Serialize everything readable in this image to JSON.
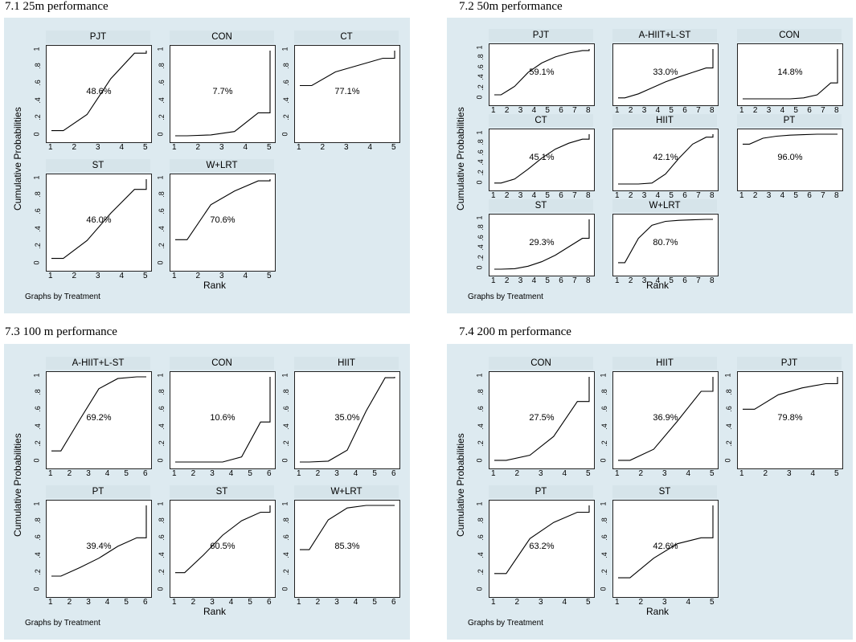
{
  "common": {
    "y_ticks": [
      "0",
      ".2",
      ".4",
      ".6",
      ".8",
      "1"
    ],
    "y_ticks_dense": [
      "0",
      ".2",
      ".4",
      ".6",
      ".8",
      "1"
    ]
  },
  "chart_data": [
    {
      "id": "p1",
      "title": "7.1 25m performance",
      "type": "line",
      "ylabel": "Cumulative Probabilities",
      "xlabel": "Rank",
      "note": "Graphs by Treatment",
      "dense": false,
      "panels": [
        {
          "name": "PJT",
          "label": "48.6%",
          "max": 5,
          "step": [
            0.06,
            0.25,
            0.67,
            0.97,
            1.0
          ]
        },
        {
          "name": "CON",
          "label": "7.7%",
          "max": 5,
          "step": [
            0.0,
            0.01,
            0.05,
            0.27,
            1.0
          ]
        },
        {
          "name": "CT",
          "label": "77.1%",
          "max": 5,
          "step": [
            0.59,
            0.75,
            0.83,
            0.91,
            1.0
          ]
        },
        {
          "name": "ST",
          "label": "46.0%",
          "max": 5,
          "step": [
            0.07,
            0.28,
            0.6,
            0.88,
            1.0
          ]
        },
        {
          "name": "W+LRT",
          "label": "70.6%",
          "max": 5,
          "step": [
            0.29,
            0.7,
            0.86,
            0.98,
            1.0
          ]
        }
      ]
    },
    {
      "id": "p2",
      "title": "7.2 50m performance",
      "type": "line",
      "ylabel": "Cumulative Probabilities",
      "xlabel": "Rank",
      "note": "Graphs by Treatment",
      "dense": true,
      "panels": [
        {
          "name": "PJT",
          "label": "59.1%",
          "max": 8,
          "step": [
            0.08,
            0.25,
            0.53,
            0.72,
            0.84,
            0.92,
            0.97,
            1.0
          ]
        },
        {
          "name": "A-HIIT+L-ST",
          "label": "33.0%",
          "max": 8,
          "step": [
            0.02,
            0.1,
            0.22,
            0.34,
            0.44,
            0.53,
            0.62,
            1.0
          ]
        },
        {
          "name": "CON",
          "label": "14.8%",
          "max": 8,
          "step": [
            0.0,
            0.0,
            0.0,
            0.0,
            0.02,
            0.08,
            0.32,
            1.0
          ]
        },
        {
          "name": "CT",
          "label": "45.1%",
          "max": 8,
          "step": [
            0.02,
            0.1,
            0.3,
            0.52,
            0.7,
            0.82,
            0.9,
            1.0
          ]
        },
        {
          "name": "HIIT",
          "label": "42.1%",
          "max": 8,
          "step": [
            0.0,
            0.0,
            0.02,
            0.2,
            0.52,
            0.8,
            0.94,
            1.0
          ]
        },
        {
          "name": "PT",
          "label": "96.0%",
          "max": 8,
          "step": [
            0.8,
            0.92,
            0.96,
            0.98,
            0.99,
            1.0,
            1.0,
            1.0
          ]
        },
        {
          "name": "ST",
          "label": "29.3%",
          "max": 8,
          "step": [
            0.0,
            0.01,
            0.06,
            0.15,
            0.28,
            0.45,
            0.62,
            1.0
          ]
        },
        {
          "name": "W+LRT",
          "label": "80.7%",
          "max": 8,
          "step": [
            0.13,
            0.62,
            0.88,
            0.96,
            0.98,
            0.99,
            1.0,
            1.0
          ]
        }
      ]
    },
    {
      "id": "p3",
      "title": "7.3 100 m performance",
      "type": "line",
      "ylabel": "Cumulative Probabilities",
      "xlabel": "Rank",
      "note": "Graphs by Treatment",
      "dense": false,
      "panels": [
        {
          "name": "A-HIIT+L-ST",
          "label": "69.2%",
          "max": 6,
          "step": [
            0.13,
            0.5,
            0.86,
            0.98,
            1.0,
            1.0
          ]
        },
        {
          "name": "CON",
          "label": "10.6%",
          "max": 6,
          "step": [
            0.0,
            0.0,
            0.0,
            0.06,
            0.47,
            1.0
          ]
        },
        {
          "name": "HIIT",
          "label": "35.0%",
          "max": 6,
          "step": [
            0.0,
            0.01,
            0.14,
            0.6,
            0.99,
            1.0
          ]
        },
        {
          "name": "PT",
          "label": "39.4%",
          "max": 6,
          "step": [
            0.17,
            0.27,
            0.38,
            0.52,
            0.62,
            1.0
          ]
        },
        {
          "name": "ST",
          "label": "60.5%",
          "max": 6,
          "step": [
            0.21,
            0.42,
            0.65,
            0.82,
            0.92,
            1.0
          ]
        },
        {
          "name": "W+LRT",
          "label": "85.3%",
          "max": 6,
          "step": [
            0.48,
            0.83,
            0.97,
            1.0,
            1.0,
            1.0
          ]
        }
      ]
    },
    {
      "id": "p4",
      "title": "7.4 200 m performance",
      "type": "line",
      "ylabel": "Cumulative Probabilities",
      "xlabel": "Rank",
      "note": "Graphs by Treatment",
      "dense": false,
      "panels": [
        {
          "name": "CON",
          "label": "27.5%",
          "max": 5,
          "step": [
            0.02,
            0.08,
            0.3,
            0.71,
            1.0
          ]
        },
        {
          "name": "HIIT",
          "label": "36.9%",
          "max": 5,
          "step": [
            0.02,
            0.15,
            0.48,
            0.83,
            1.0
          ]
        },
        {
          "name": "PJT",
          "label": "79.8%",
          "max": 5,
          "step": [
            0.62,
            0.79,
            0.87,
            0.92,
            1.0
          ]
        },
        {
          "name": "PT",
          "label": "63.2%",
          "max": 5,
          "step": [
            0.2,
            0.61,
            0.8,
            0.92,
            1.0
          ]
        },
        {
          "name": "ST",
          "label": "42.6%",
          "max": 5,
          "step": [
            0.15,
            0.38,
            0.55,
            0.62,
            1.0
          ]
        }
      ]
    }
  ]
}
